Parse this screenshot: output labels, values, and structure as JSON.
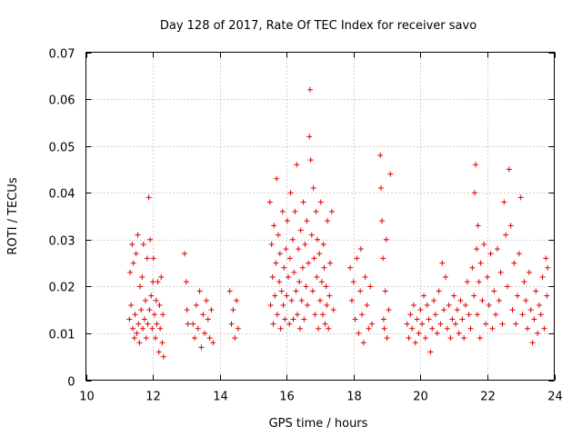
{
  "chart_data": {
    "type": "scatter",
    "title": "Day 128 of 2017, Rate Of TEC Index for receiver savo",
    "xlabel": "GPS time / hours",
    "ylabel": "ROTI / TECUs",
    "xlim": [
      10,
      24
    ],
    "ylim": [
      0,
      0.07
    ],
    "xticks": [
      "10",
      "12",
      "14",
      "16",
      "18",
      "20",
      "22",
      "24"
    ],
    "yticks": [
      "0",
      "0.01",
      "0.02",
      "0.03",
      "0.04",
      "0.05",
      "0.06",
      "0.07"
    ],
    "grid": true,
    "marker": "+",
    "color": "#e00000",
    "series": [
      {
        "values": [
          [
            11.3,
            0.013
          ],
          [
            11.32,
            0.023
          ],
          [
            11.35,
            0.016
          ],
          [
            11.38,
            0.029
          ],
          [
            11.4,
            0.011
          ],
          [
            11.42,
            0.025
          ],
          [
            11.45,
            0.009
          ],
          [
            11.47,
            0.014
          ],
          [
            11.5,
            0.027
          ],
          [
            11.52,
            0.01
          ],
          [
            11.55,
            0.031
          ],
          [
            11.57,
            0.012
          ],
          [
            11.6,
            0.008
          ],
          [
            11.62,
            0.02
          ],
          [
            11.65,
            0.015
          ],
          [
            11.68,
            0.022
          ],
          [
            11.7,
            0.011
          ],
          [
            11.72,
            0.029
          ],
          [
            11.75,
            0.013
          ],
          [
            11.78,
            0.017
          ],
          [
            11.8,
            0.009
          ],
          [
            11.83,
            0.026
          ],
          [
            11.85,
            0.012
          ],
          [
            11.88,
            0.039
          ],
          [
            11.9,
            0.015
          ],
          [
            11.92,
            0.03
          ],
          [
            11.95,
            0.018
          ],
          [
            11.98,
            0.011
          ],
          [
            12.0,
            0.021
          ],
          [
            12.02,
            0.026
          ],
          [
            12.05,
            0.014
          ],
          [
            12.08,
            0.009
          ],
          [
            12.1,
            0.017
          ],
          [
            12.12,
            0.012
          ],
          [
            12.15,
            0.021
          ],
          [
            12.18,
            0.006
          ],
          [
            12.2,
            0.016
          ],
          [
            12.22,
            0.011
          ],
          [
            12.25,
            0.022
          ],
          [
            12.28,
            0.008
          ],
          [
            12.3,
            0.014
          ],
          [
            12.32,
            0.005
          ],
          [
            12.95,
            0.027
          ],
          [
            13.0,
            0.021
          ],
          [
            13.02,
            0.015
          ],
          [
            13.05,
            0.012
          ],
          [
            13.2,
            0.012
          ],
          [
            13.25,
            0.009
          ],
          [
            13.3,
            0.016
          ],
          [
            13.35,
            0.011
          ],
          [
            13.4,
            0.019
          ],
          [
            13.45,
            0.007
          ],
          [
            13.5,
            0.014
          ],
          [
            13.55,
            0.01
          ],
          [
            13.6,
            0.017
          ],
          [
            13.65,
            0.013
          ],
          [
            13.7,
            0.009
          ],
          [
            13.75,
            0.015
          ],
          [
            13.8,
            0.008
          ],
          [
            14.3,
            0.019
          ],
          [
            14.35,
            0.012
          ],
          [
            14.4,
            0.015
          ],
          [
            14.45,
            0.009
          ],
          [
            14.5,
            0.017
          ],
          [
            14.55,
            0.011
          ],
          [
            15.5,
            0.038
          ],
          [
            15.52,
            0.016
          ],
          [
            15.55,
            0.029
          ],
          [
            15.58,
            0.022
          ],
          [
            15.6,
            0.012
          ],
          [
            15.62,
            0.033
          ],
          [
            15.65,
            0.018
          ],
          [
            15.68,
            0.025
          ],
          [
            15.7,
            0.043
          ],
          [
            15.72,
            0.014
          ],
          [
            15.75,
            0.031
          ],
          [
            15.78,
            0.021
          ],
          [
            15.8,
            0.027
          ],
          [
            15.82,
            0.011
          ],
          [
            15.85,
            0.019
          ],
          [
            15.88,
            0.036
          ],
          [
            15.9,
            0.016
          ],
          [
            15.92,
            0.024
          ],
          [
            15.95,
            0.013
          ],
          [
            15.98,
            0.028
          ],
          [
            16.0,
            0.018
          ],
          [
            16.02,
            0.034
          ],
          [
            16.05,
            0.022
          ],
          [
            16.08,
            0.012
          ],
          [
            16.1,
            0.026
          ],
          [
            16.12,
            0.04
          ],
          [
            16.15,
            0.017
          ],
          [
            16.18,
            0.03
          ],
          [
            16.2,
            0.013
          ],
          [
            16.22,
            0.023
          ],
          [
            16.25,
            0.036
          ],
          [
            16.28,
            0.019
          ],
          [
            16.3,
            0.046
          ],
          [
            16.32,
            0.014
          ],
          [
            16.35,
            0.028
          ],
          [
            16.38,
            0.021
          ],
          [
            16.4,
            0.011
          ],
          [
            16.42,
            0.032
          ],
          [
            16.45,
            0.017
          ],
          [
            16.48,
            0.024
          ],
          [
            16.5,
            0.038
          ],
          [
            16.52,
            0.013
          ],
          [
            16.55,
            0.029
          ],
          [
            16.58,
            0.02
          ],
          [
            16.6,
            0.034
          ],
          [
            16.62,
            0.016
          ],
          [
            16.65,
            0.025
          ],
          [
            16.68,
            0.052
          ],
          [
            16.7,
            0.062
          ],
          [
            16.72,
            0.047
          ],
          [
            16.75,
            0.031
          ],
          [
            16.78,
            0.019
          ],
          [
            16.8,
            0.041
          ],
          [
            16.82,
            0.026
          ],
          [
            16.85,
            0.014
          ],
          [
            16.88,
            0.036
          ],
          [
            16.9,
            0.022
          ],
          [
            16.92,
            0.03
          ],
          [
            16.95,
            0.011
          ],
          [
            16.98,
            0.027
          ],
          [
            17.0,
            0.017
          ],
          [
            17.02,
            0.038
          ],
          [
            17.05,
            0.021
          ],
          [
            17.08,
            0.014
          ],
          [
            17.1,
            0.029
          ],
          [
            17.12,
            0.024
          ],
          [
            17.15,
            0.012
          ],
          [
            17.18,
            0.02
          ],
          [
            17.2,
            0.016
          ],
          [
            17.22,
            0.034
          ],
          [
            17.25,
            0.011
          ],
          [
            17.28,
            0.018
          ],
          [
            17.3,
            0.025
          ],
          [
            17.35,
            0.036
          ],
          [
            17.4,
            0.015
          ],
          [
            17.9,
            0.024
          ],
          [
            17.95,
            0.017
          ],
          [
            18.0,
            0.021
          ],
          [
            18.05,
            0.013
          ],
          [
            18.1,
            0.026
          ],
          [
            18.15,
            0.01
          ],
          [
            18.2,
            0.019
          ],
          [
            18.22,
            0.028
          ],
          [
            18.25,
            0.014
          ],
          [
            18.3,
            0.008
          ],
          [
            18.35,
            0.022
          ],
          [
            18.4,
            0.016
          ],
          [
            18.45,
            0.011
          ],
          [
            18.5,
            0.02
          ],
          [
            18.55,
            0.012
          ],
          [
            18.8,
            0.048
          ],
          [
            18.82,
            0.041
          ],
          [
            18.85,
            0.034
          ],
          [
            18.88,
            0.026
          ],
          [
            18.9,
            0.013
          ],
          [
            18.92,
            0.011
          ],
          [
            18.95,
            0.019
          ],
          [
            18.98,
            0.03
          ],
          [
            19.0,
            0.009
          ],
          [
            19.05,
            0.015
          ],
          [
            19.1,
            0.044
          ],
          [
            19.6,
            0.012
          ],
          [
            19.65,
            0.009
          ],
          [
            19.7,
            0.014
          ],
          [
            19.75,
            0.011
          ],
          [
            19.8,
            0.016
          ],
          [
            19.85,
            0.008
          ],
          [
            19.9,
            0.013
          ],
          [
            19.95,
            0.01
          ],
          [
            20.0,
            0.015
          ],
          [
            20.05,
            0.012
          ],
          [
            20.1,
            0.018
          ],
          [
            20.15,
            0.009
          ],
          [
            20.2,
            0.016
          ],
          [
            20.25,
            0.013
          ],
          [
            20.3,
            0.006
          ],
          [
            20.35,
            0.011
          ],
          [
            20.4,
            0.017
          ],
          [
            20.45,
            0.014
          ],
          [
            20.5,
            0.01
          ],
          [
            20.55,
            0.019
          ],
          [
            20.6,
            0.012
          ],
          [
            20.65,
            0.025
          ],
          [
            20.7,
            0.015
          ],
          [
            20.75,
            0.022
          ],
          [
            20.8,
            0.011
          ],
          [
            20.85,
            0.016
          ],
          [
            20.9,
            0.009
          ],
          [
            20.95,
            0.013
          ],
          [
            21.0,
            0.018
          ],
          [
            21.05,
            0.012
          ],
          [
            21.1,
            0.015
          ],
          [
            21.15,
            0.01
          ],
          [
            21.2,
            0.017
          ],
          [
            21.25,
            0.013
          ],
          [
            21.3,
            0.009
          ],
          [
            21.35,
            0.016
          ],
          [
            21.4,
            0.021
          ],
          [
            21.45,
            0.014
          ],
          [
            21.5,
            0.011
          ],
          [
            21.55,
            0.024
          ],
          [
            21.6,
            0.018
          ],
          [
            21.62,
            0.04
          ],
          [
            21.65,
            0.046
          ],
          [
            21.68,
            0.028
          ],
          [
            21.7,
            0.014
          ],
          [
            21.72,
            0.033
          ],
          [
            21.75,
            0.021
          ],
          [
            21.78,
            0.009
          ],
          [
            21.8,
            0.025
          ],
          [
            21.85,
            0.017
          ],
          [
            21.9,
            0.029
          ],
          [
            21.95,
            0.012
          ],
          [
            22.0,
            0.022
          ],
          [
            22.05,
            0.016
          ],
          [
            22.1,
            0.027
          ],
          [
            22.15,
            0.011
          ],
          [
            22.2,
            0.019
          ],
          [
            22.25,
            0.014
          ],
          [
            22.3,
            0.028
          ],
          [
            22.35,
            0.017
          ],
          [
            22.4,
            0.023
          ],
          [
            22.45,
            0.012
          ],
          [
            22.5,
            0.038
          ],
          [
            22.55,
            0.031
          ],
          [
            22.6,
            0.02
          ],
          [
            22.65,
            0.045
          ],
          [
            22.7,
            0.033
          ],
          [
            22.75,
            0.015
          ],
          [
            22.8,
            0.025
          ],
          [
            22.85,
            0.012
          ],
          [
            22.9,
            0.018
          ],
          [
            22.95,
            0.027
          ],
          [
            23.0,
            0.039
          ],
          [
            23.05,
            0.014
          ],
          [
            23.1,
            0.021
          ],
          [
            23.15,
            0.017
          ],
          [
            23.2,
            0.011
          ],
          [
            23.25,
            0.023
          ],
          [
            23.3,
            0.015
          ],
          [
            23.35,
            0.008
          ],
          [
            23.4,
            0.013
          ],
          [
            23.45,
            0.019
          ],
          [
            23.5,
            0.01
          ],
          [
            23.55,
            0.016
          ],
          [
            23.6,
            0.014
          ],
          [
            23.65,
            0.022
          ],
          [
            23.7,
            0.011
          ],
          [
            23.75,
            0.026
          ],
          [
            23.78,
            0.018
          ],
          [
            23.8,
            0.024
          ]
        ]
      }
    ]
  }
}
